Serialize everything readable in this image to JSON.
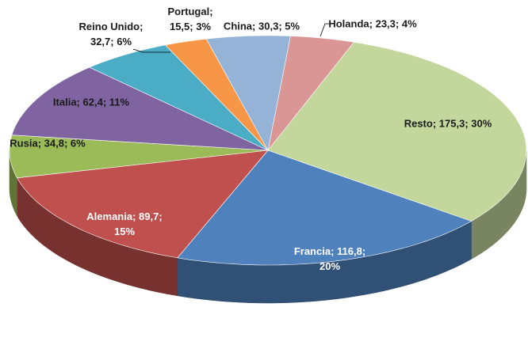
{
  "chart_data": {
    "type": "pie3d",
    "categories": [
      "Holanda",
      "Resto",
      "Francia",
      "Alemania",
      "Rusia",
      "Italia",
      "Reino Unido",
      "Portugal",
      "China"
    ],
    "values": [
      23.3,
      175.3,
      116.8,
      89.7,
      34.8,
      62.4,
      32.7,
      15.5,
      30.3
    ],
    "value_labels": [
      "23,3",
      "175,3",
      "116,8",
      "89,7",
      "34,8",
      "62,4",
      "32,7",
      "15,5",
      "30,3"
    ],
    "percent_labels": [
      "4%",
      "30%",
      "20%",
      "15%",
      "6%",
      "11%",
      "6%",
      "3%",
      "5%"
    ],
    "colors": [
      "#d99694",
      "#c3d69b",
      "#4f81bd",
      "#c0504d",
      "#9bbb59",
      "#8064a2",
      "#4bacc6",
      "#f79646",
      "#95b3d7"
    ]
  }
}
